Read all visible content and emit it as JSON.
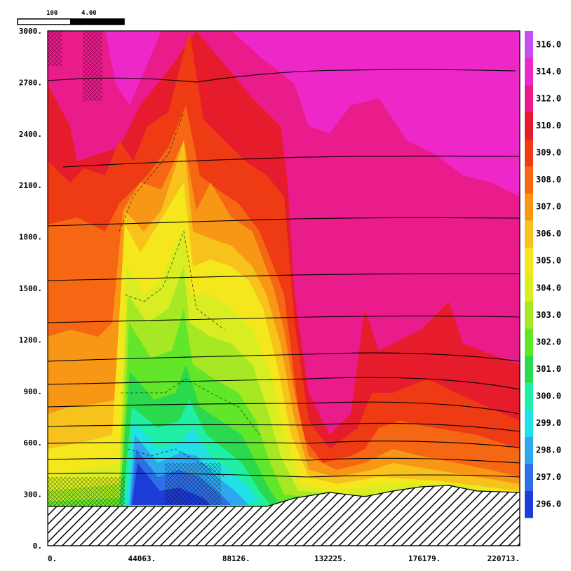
{
  "chart_data": {
    "type": "heatmap",
    "title": "",
    "xlabel": "",
    "ylabel": "",
    "x_tick_labels": [
      "0.",
      "44063.",
      "88126.",
      "132225.",
      "176179.",
      "220713."
    ],
    "x_tick_values": [
      0,
      44063,
      88126,
      132225,
      176179,
      220713
    ],
    "xlim": [
      0,
      220713
    ],
    "y_tick_labels": [
      "0.",
      "300.",
      "600.",
      "900.",
      "1200.",
      "1500.",
      "1800.",
      "2100.",
      "2400.",
      "2700.",
      "3000."
    ],
    "y_tick_values": [
      0,
      300,
      600,
      900,
      1200,
      1500,
      1800,
      2100,
      2400,
      2700,
      3000
    ],
    "ylim": [
      0,
      3000
    ],
    "colorbar": {
      "labels": [
        "296.0",
        "297.0",
        "298.0",
        "299.0",
        "300.0",
        "301.0",
        "302.0",
        "303.0",
        "304.0",
        "305.0",
        "306.0",
        "307.0",
        "308.0",
        "309.0",
        "310.0",
        "312.0",
        "314.0",
        "316.0"
      ],
      "colors": [
        "#1d3bd6",
        "#2e6fe6",
        "#2ea7ef",
        "#22e0e6",
        "#1ff0a5",
        "#2bd94e",
        "#62e62a",
        "#a6e824",
        "#d9ee22",
        "#f4e81d",
        "#f7c21b",
        "#f89616",
        "#f56713",
        "#ee3b14",
        "#e61c2c",
        "#ea1c8b",
        "#ee28c8",
        "#c44ef0"
      ]
    },
    "scale_bar_labels": [
      "100",
      "4.00"
    ],
    "terrain_hatched": true
  }
}
